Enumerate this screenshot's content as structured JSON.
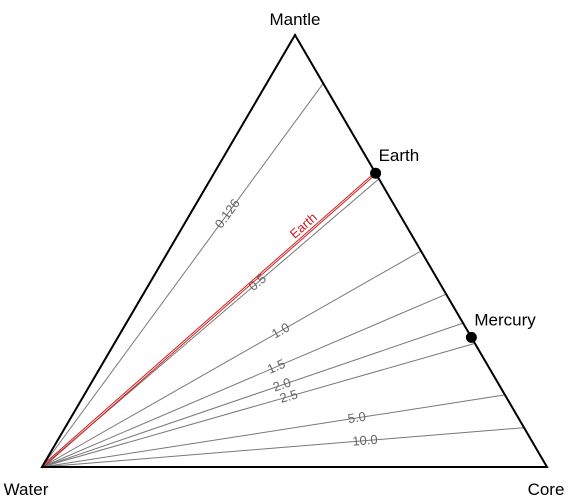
{
  "vertices": {
    "top": "Mantle",
    "left": "Water",
    "right": "Core"
  },
  "points": [
    {
      "label": "Earth",
      "core_fraction": 0.32
    },
    {
      "label": "Mercury",
      "core_fraction": 0.7
    }
  ],
  "ratio_lines": [
    {
      "label": "0.126",
      "core_fraction": 0.112
    },
    {
      "label": "0.5",
      "core_fraction": 0.333
    },
    {
      "label": "1.0",
      "core_fraction": 0.5
    },
    {
      "label": "1.5",
      "core_fraction": 0.6
    },
    {
      "label": "2.0",
      "core_fraction": 0.667
    },
    {
      "label": "2.5",
      "core_fraction": 0.714
    },
    {
      "label": "5.0",
      "core_fraction": 0.833
    },
    {
      "label": "10.0",
      "core_fraction": 0.909
    }
  ],
  "highlight_line": {
    "label": "Earth",
    "core_fraction": 0.32
  },
  "colors": {
    "outline": "#000000",
    "ratio_line": "#777777",
    "ratio_label": "#666666",
    "highlight": "#cc2222",
    "point": "#000000"
  }
}
